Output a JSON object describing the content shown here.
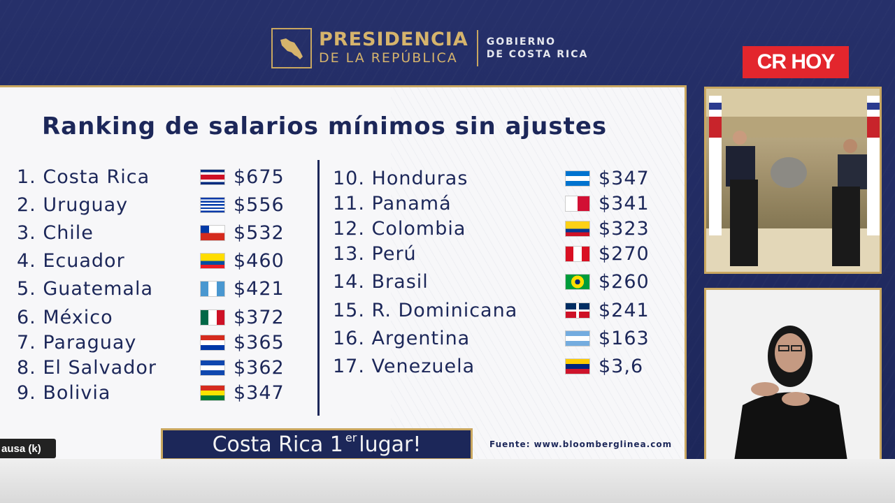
{
  "header": {
    "presidencia_line1": "PRESIDENCIA",
    "presidencia_line2": "DE LA REPÚBLICA",
    "gobierno_line1": "GOBIERNO",
    "gobierno_line2": "DE COSTA RICA"
  },
  "brand": {
    "label": "CR HOY"
  },
  "slide": {
    "title": "Ranking de salarios mínimos sin ajustes",
    "left_column": [
      {
        "rank": "1.",
        "country": "Costa Rica",
        "flag": "costa-rica-flag",
        "value": "$675"
      },
      {
        "rank": "2.",
        "country": "Uruguay",
        "flag": "uruguay-flag",
        "value": "$556"
      },
      {
        "rank": "3.",
        "country": "Chile",
        "flag": "chile-flag",
        "value": "$532"
      },
      {
        "rank": "4.",
        "country": "Ecuador",
        "flag": "ecuador-flag",
        "value": "$460"
      },
      {
        "rank": "5.",
        "country": "Guatemala",
        "flag": "guatemala-flag",
        "value": "$421"
      },
      {
        "rank": "6.",
        "country": "México",
        "flag": "mexico-flag",
        "value": "$372"
      },
      {
        "rank": "7.",
        "country": "Paraguay",
        "flag": "paraguay-flag",
        "value": "$365"
      },
      {
        "rank": "8.",
        "country": "El Salvador",
        "flag": "el-salvador-flag",
        "value": "$362"
      },
      {
        "rank": "9.",
        "country": "Bolivia",
        "flag": "bolivia-flag",
        "value": "$347"
      }
    ],
    "right_column": [
      {
        "rank": "10.",
        "country": "Honduras",
        "flag": "honduras-flag",
        "value": "$347"
      },
      {
        "rank": "11.",
        "country": "Panamá",
        "flag": "panama-flag",
        "value": "$341"
      },
      {
        "rank": "12.",
        "country": "Colombia",
        "flag": "colombia-flag",
        "value": "$323"
      },
      {
        "rank": "13.",
        "country": "Perú",
        "flag": "peru-flag",
        "value": "$270"
      },
      {
        "rank": "14.",
        "country": "Brasil",
        "flag": "brasil-flag",
        "value": "$260"
      },
      {
        "rank": "15.",
        "country": "R. Dominicana",
        "flag": "dominican-republic-flag",
        "value": "$241"
      },
      {
        "rank": "16.",
        "country": "Argentina",
        "flag": "argentina-flag",
        "value": "$163"
      },
      {
        "rank": "17.",
        "country": "Venezuela",
        "flag": "venezuela-flag",
        "value": "$3,6"
      }
    ],
    "banner_pre": "Costa Rica 1",
    "banner_sup": "er",
    "banner_post": "lugar!",
    "source": "Fuente: www.bloomberglinea.com"
  },
  "player": {
    "pause_label": "ausa (k)"
  },
  "colors": {
    "navy": "#1c2759",
    "gold": "#c9a760",
    "brand_red": "#e3262d"
  }
}
